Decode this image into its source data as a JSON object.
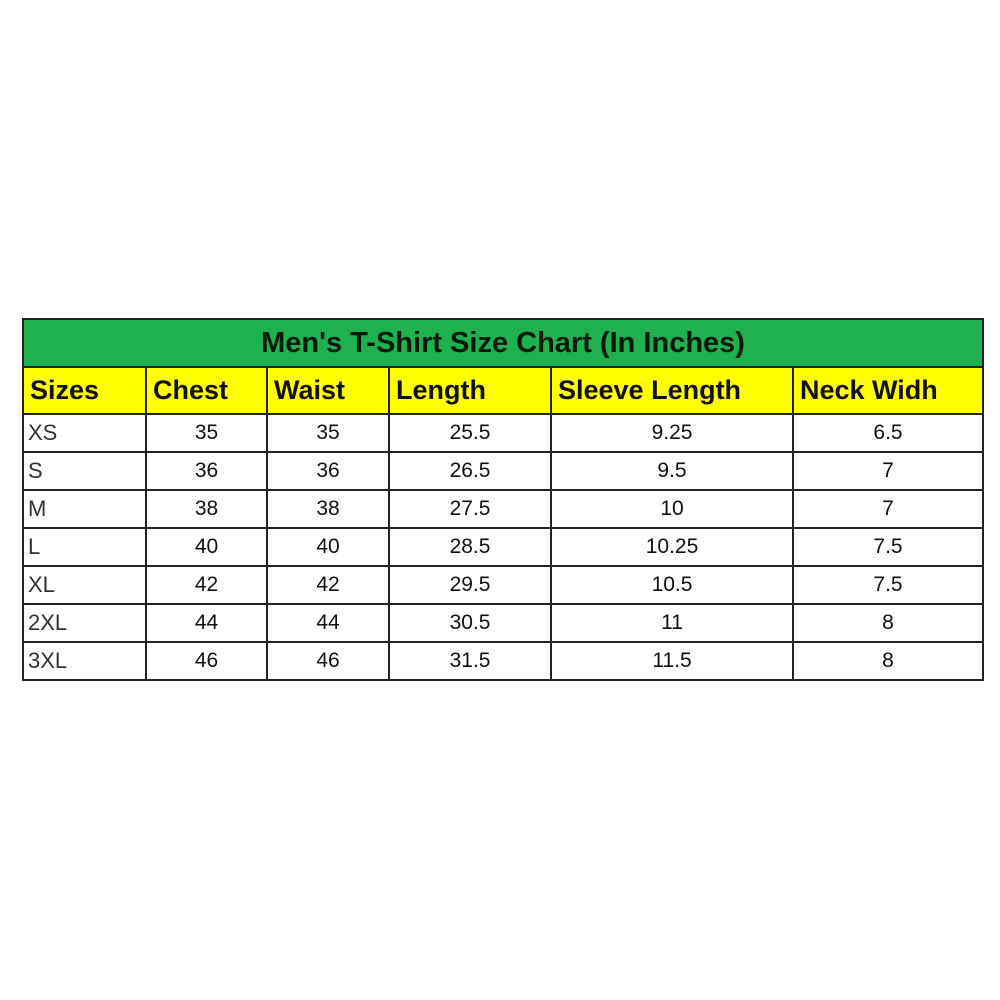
{
  "title": "Men's T-Shirt Size Chart (In Inches)",
  "colors": {
    "title_bg": "#1fb04f",
    "header_bg": "#ffff00"
  },
  "headers": [
    "Sizes",
    "Chest",
    "Waist",
    "Length",
    "Sleeve Length",
    "Neck Widh"
  ],
  "rows": [
    [
      "XS",
      "35",
      "35",
      "25.5",
      "9.25",
      "6.5"
    ],
    [
      "S",
      "36",
      "36",
      "26.5",
      "9.5",
      "7"
    ],
    [
      "M",
      "38",
      "38",
      "27.5",
      "10",
      "7"
    ],
    [
      "L",
      "40",
      "40",
      "28.5",
      "10.25",
      "7.5"
    ],
    [
      "XL",
      "42",
      "42",
      "29.5",
      "10.5",
      "7.5"
    ],
    [
      "2XL",
      "44",
      "44",
      "30.5",
      "11",
      "8"
    ],
    [
      "3XL",
      "46",
      "46",
      "31.5",
      "11.5",
      "8"
    ]
  ]
}
